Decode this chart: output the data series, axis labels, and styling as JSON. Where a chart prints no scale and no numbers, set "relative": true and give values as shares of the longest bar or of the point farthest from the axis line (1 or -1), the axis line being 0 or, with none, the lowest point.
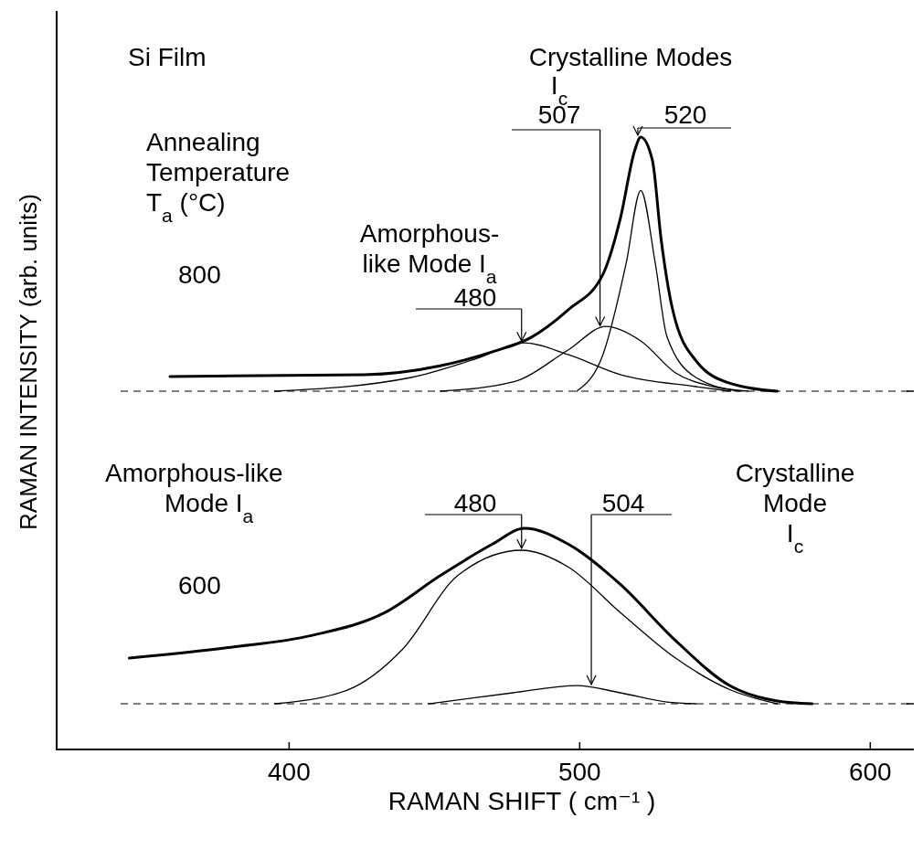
{
  "chart_data": [
    {
      "type": "line",
      "relative": true,
      "xlim": [
        320,
        615
      ],
      "tick_labels": false,
      "ylabel": "RAMAN INTENSITY (arb. units)",
      "line_style": "solid",
      "marker": "none",
      "grid": false,
      "ref_lines": [
        {
          "axis": "y",
          "value": 0,
          "line_style": "dashed",
          "color": "#000000"
        }
      ],
      "annotations": [
        "Si Film",
        "Crystalline Modes",
        "I$_{c}$",
        {
          "text": "507",
          "x": 507,
          "y": 0.25
        },
        {
          "text": "520",
          "x": 520,
          "y": 1
        },
        "Annealing\nTemperature\nT$_{a}$  (°C)",
        "800",
        "Amorphous-\nlike Mode I$_{a}$",
        {
          "text": "480",
          "x": 480,
          "y": 0.19
        }
      ],
      "series": [
        {
          "color": "#000000",
          "x": [
            359,
            426,
            452,
            470,
            483,
            496,
            508,
            514,
            519,
            521,
            525,
            528,
            532,
            540,
            552,
            568
          ],
          "values": [
            0.058,
            0.065,
            0.1,
            0.155,
            0.21,
            0.32,
            0.46,
            0.68,
            0.95,
            1,
            0.91,
            0.6,
            0.32,
            0.12,
            0.03,
            0
          ]
        },
        {
          "color": "#000000",
          "x": [
            395,
            442,
            464,
            481,
            496,
            514,
            540,
            552
          ],
          "values": [
            0,
            0.054,
            0.126,
            0.19,
            0.144,
            0.065,
            0.018,
            0
          ]
        },
        {
          "color": "#000000",
          "x": [
            452,
            477,
            496,
            509,
            521,
            533,
            546,
            558
          ],
          "values": [
            0,
            0.036,
            0.162,
            0.255,
            0.198,
            0.072,
            0.018,
            0
          ]
        },
        {
          "color": "#000000",
          "x": [
            499,
            508,
            516,
            521,
            526,
            530,
            540,
            555
          ],
          "values": [
            0,
            0.144,
            0.504,
            0.79,
            0.504,
            0.216,
            0.054,
            0
          ]
        }
      ]
    },
    {
      "type": "line",
      "relative": true,
      "xlim": [
        320,
        615
      ],
      "xticks": [
        400,
        500,
        600
      ],
      "tick_labels": "x",
      "xlabel": "RAMAN  SHIFT ( cm⁻¹ )",
      "line_style": "solid",
      "marker": "none",
      "grid": false,
      "ref_lines": [
        {
          "axis": "y",
          "value": 0,
          "line_style": "dashed",
          "color": "#000000"
        }
      ],
      "annotations": [
        "Amorphous-like\nMode I$_{a}$",
        {
          "text": "480",
          "x": 480,
          "y": 0.875
        },
        {
          "text": "504",
          "x": 504,
          "y": 0.1
        },
        "Crystalline\nMode\nI$_{c}$",
        "600"
      ],
      "series": [
        {
          "color": "#000000",
          "x": [
            345,
            379,
            408,
            433,
            452,
            470,
            481,
            496,
            514,
            533,
            552,
            568,
            580
          ],
          "values": [
            0.26,
            0.32,
            0.39,
            0.52,
            0.73,
            0.91,
            1,
            0.91,
            0.68,
            0.36,
            0.1,
            0.016,
            0
          ]
        },
        {
          "color": "#000000",
          "x": [
            395,
            420,
            439,
            458,
            480,
            496,
            514,
            533,
            552,
            568
          ],
          "values": [
            0,
            0.078,
            0.31,
            0.73,
            0.875,
            0.78,
            0.52,
            0.26,
            0.078,
            0
          ]
        },
        {
          "color": "#000000",
          "x": [
            448,
            477,
            499,
            514,
            530,
            540
          ],
          "values": [
            0,
            0.0625,
            0.104,
            0.0625,
            0.01,
            0
          ]
        }
      ]
    }
  ]
}
